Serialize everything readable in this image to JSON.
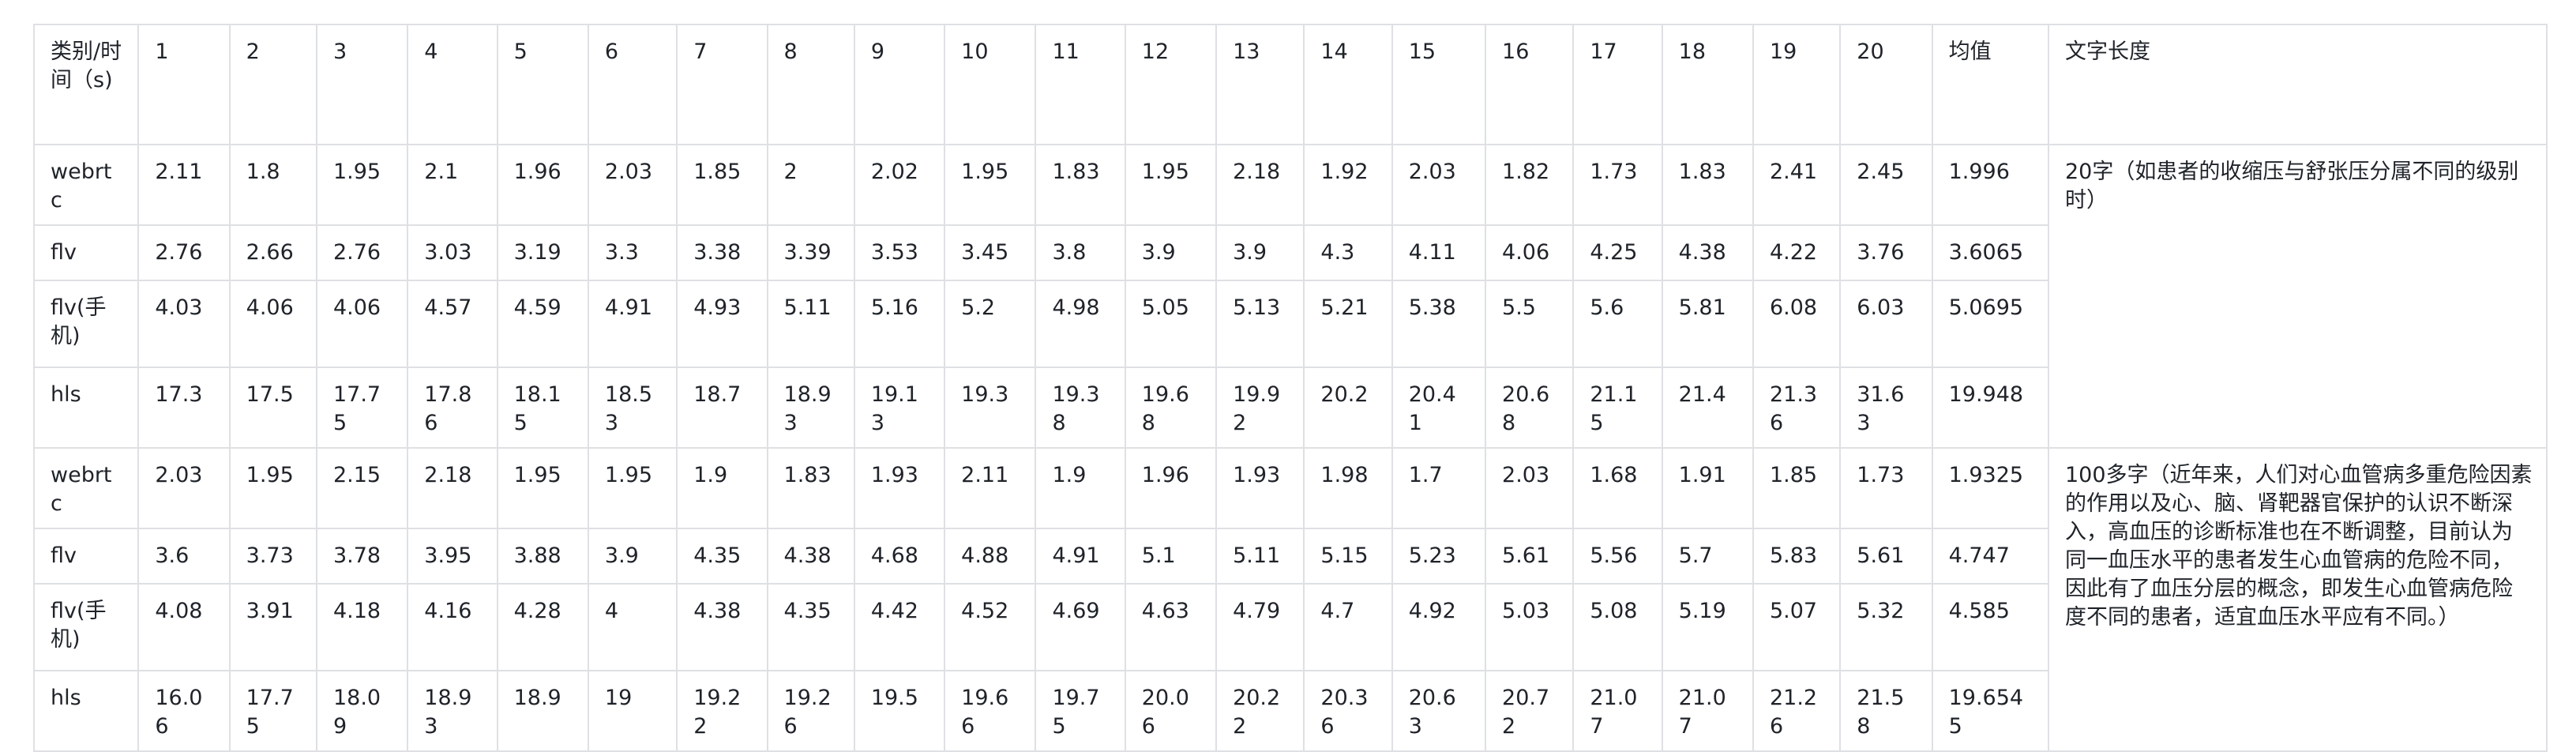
{
  "header": {
    "category_label": "类别/时间（s)",
    "runs": [
      "1",
      "2",
      "3",
      "4",
      "5",
      "6",
      "7",
      "8",
      "9",
      "10",
      "11",
      "12",
      "13",
      "14",
      "15",
      "16",
      "17",
      "18",
      "19",
      "20"
    ],
    "mean_label": "均值",
    "text_length_label": "文字长度"
  },
  "groups": [
    {
      "text_length": "20字（如患者的收缩压与舒张压分属不同的级别时）",
      "rows": [
        {
          "category": "webrtc",
          "values": [
            "2.11",
            "1.8",
            "1.95",
            "2.1",
            "1.96",
            "2.03",
            "1.85",
            "2",
            "2.02",
            "1.95",
            "1.83",
            "1.95",
            "2.18",
            "1.92",
            "2.03",
            "1.82",
            "1.73",
            "1.83",
            "2.41",
            "2.45"
          ],
          "mean": "1.996"
        },
        {
          "category": "flv",
          "values": [
            "2.76",
            "2.66",
            "2.76",
            "3.03",
            "3.19",
            "3.3",
            "3.38",
            "3.39",
            "3.53",
            "3.45",
            "3.8",
            "3.9",
            "3.9",
            "4.3",
            "4.11",
            "4.06",
            "4.25",
            "4.38",
            "4.22",
            "3.76"
          ],
          "mean": "3.6065"
        },
        {
          "category": "flv(手机)",
          "values": [
            "4.03",
            "4.06",
            "4.06",
            "4.57",
            "4.59",
            "4.91",
            "4.93",
            "5.11",
            "5.16",
            "5.2",
            "4.98",
            "5.05",
            "5.13",
            "5.21",
            "5.38",
            "5.5",
            "5.6",
            "5.81",
            "6.08",
            "6.03"
          ],
          "mean": "5.0695"
        },
        {
          "category": "hls",
          "values": [
            "17.3",
            "17.5",
            "17.75",
            "17.86",
            "18.15",
            "18.53",
            "18.7",
            "18.93",
            "19.13",
            "19.3",
            "19.38",
            "19.68",
            "19.92",
            "20.2",
            "20.41",
            "20.68",
            "21.15",
            "21.4",
            "21.36",
            "31.63"
          ],
          "mean": "19.948"
        }
      ]
    },
    {
      "text_length": "100多字（近年来，人们对心血管病多重危险因素的作用以及心、脑、肾靶器官保护的认识不断深入，高血压的诊断标准也在不断调整，目前认为同一血压水平的患者发生心血管病的危险不同，因此有了血压分层的概念，即发生心血管病危险度不同的患者，适宜血压水平应有不同。）",
      "rows": [
        {
          "category": "webrtc",
          "values": [
            "2.03",
            "1.95",
            "2.15",
            "2.18",
            "1.95",
            "1.95",
            "1.9",
            "1.83",
            "1.93",
            "2.11",
            "1.9",
            "1.96",
            "1.93",
            "1.98",
            "1.7",
            "2.03",
            "1.68",
            "1.91",
            "1.85",
            "1.73"
          ],
          "mean": "1.9325"
        },
        {
          "category": "flv",
          "values": [
            "3.6",
            "3.73",
            "3.78",
            "3.95",
            "3.88",
            "3.9",
            "4.35",
            "4.38",
            "4.68",
            "4.88",
            "4.91",
            "5.1",
            "5.11",
            "5.15",
            "5.23",
            "5.61",
            "5.56",
            "5.7",
            "5.83",
            "5.61"
          ],
          "mean": "4.747"
        },
        {
          "category": "flv(手机)",
          "values": [
            "4.08",
            "3.91",
            "4.18",
            "4.16",
            "4.28",
            "4",
            "4.38",
            "4.35",
            "4.42",
            "4.52",
            "4.69",
            "4.63",
            "4.79",
            "4.7",
            "4.92",
            "5.03",
            "5.08",
            "5.19",
            "5.07",
            "5.32"
          ],
          "mean": "4.585"
        },
        {
          "category": "hls",
          "values": [
            "16.06",
            "17.75",
            "18.09",
            "18.93",
            "18.9",
            "19",
            "19.22",
            "19.26",
            "19.5",
            "19.66",
            "19.75",
            "20.06",
            "20.22",
            "20.36",
            "20.63",
            "20.72",
            "21.07",
            "21.07",
            "21.26",
            "21.58"
          ],
          "mean": "19.6545"
        }
      ]
    }
  ]
}
